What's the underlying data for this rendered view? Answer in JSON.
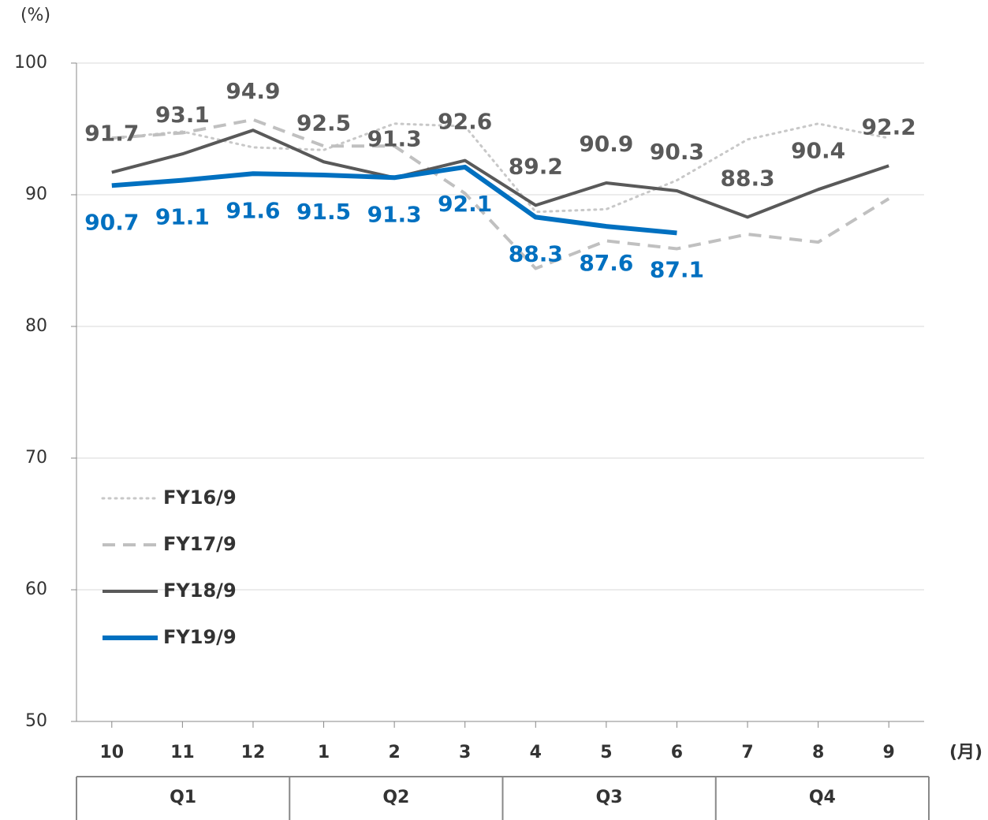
{
  "chart_data": {
    "type": "line",
    "y_unit_label": "(%)",
    "x_unit_label": "(月)",
    "categories": [
      "10",
      "11",
      "12",
      "1",
      "2",
      "3",
      "4",
      "5",
      "6",
      "7",
      "8",
      "9"
    ],
    "quarters": [
      "Q1",
      "Q2",
      "Q3",
      "Q4"
    ],
    "ylim": [
      50,
      100
    ],
    "yticks": [
      50,
      60,
      70,
      80,
      90,
      100
    ],
    "grid": true,
    "legend": "lower-left",
    "series": [
      {
        "name": "FY16/9",
        "color": "#c8c8c8",
        "line_style": "dotted",
        "line_width": 3,
        "show_labels": false,
        "values": [
          94.3,
          94.8,
          93.6,
          93.4,
          95.4,
          95.2,
          88.7,
          88.9,
          91.1,
          94.2,
          95.4,
          94.3
        ]
      },
      {
        "name": "FY17/9",
        "color": "#c0c0c0",
        "line_style": "dashed",
        "line_width": 4,
        "show_labels": false,
        "values": [
          94.3,
          94.7,
          95.7,
          93.7,
          93.7,
          90.1,
          84.4,
          86.5,
          85.9,
          87.0,
          86.4,
          89.7
        ]
      },
      {
        "name": "FY18/9",
        "color": "#595959",
        "line_style": "solid",
        "line_width": 4,
        "show_labels": true,
        "label_position": "above",
        "values": [
          91.7,
          93.1,
          94.9,
          92.5,
          91.3,
          92.6,
          89.2,
          90.9,
          90.3,
          88.3,
          90.4,
          92.2
        ]
      },
      {
        "name": "FY19/9",
        "color": "#0070c0",
        "line_style": "solid",
        "line_width": 6,
        "show_labels": true,
        "label_position": "below",
        "values": [
          90.7,
          91.1,
          91.6,
          91.5,
          91.3,
          92.1,
          88.3,
          87.6,
          87.1,
          null,
          null,
          null
        ]
      }
    ]
  }
}
